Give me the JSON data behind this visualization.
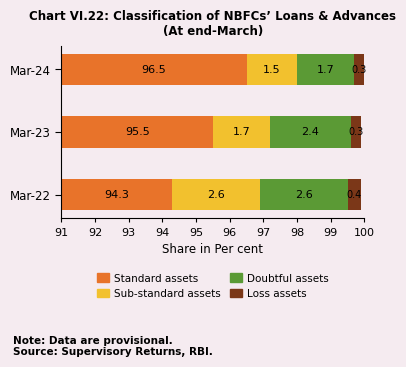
{
  "title_line1": "Chart VI.22: Classification of NBFCs’ Loans & Advances",
  "title_line2": "(At end-March)",
  "categories": [
    "Mar-22",
    "Mar-23",
    "Mar-24"
  ],
  "standard": [
    94.3,
    95.5,
    96.5
  ],
  "substandard": [
    2.6,
    1.7,
    1.5
  ],
  "doubtful": [
    2.6,
    2.4,
    1.7
  ],
  "loss": [
    0.4,
    0.3,
    0.3
  ],
  "colors": {
    "standard": "#E8732A",
    "substandard": "#F2C12E",
    "doubtful": "#5B9A35",
    "loss": "#7B3718"
  },
  "xlabel": "Share in Per cent",
  "xlim": [
    91,
    100
  ],
  "xticks": [
    91,
    92,
    93,
    94,
    95,
    96,
    97,
    98,
    99,
    100
  ],
  "legend_labels": [
    "Standard assets",
    "Sub-standard assets",
    "Doubtful assets",
    "Loss assets"
  ],
  "note": "Note: Data are provisional.\nSource: Supervisory Returns, RBI.",
  "bg_color": "#F5EBF0"
}
